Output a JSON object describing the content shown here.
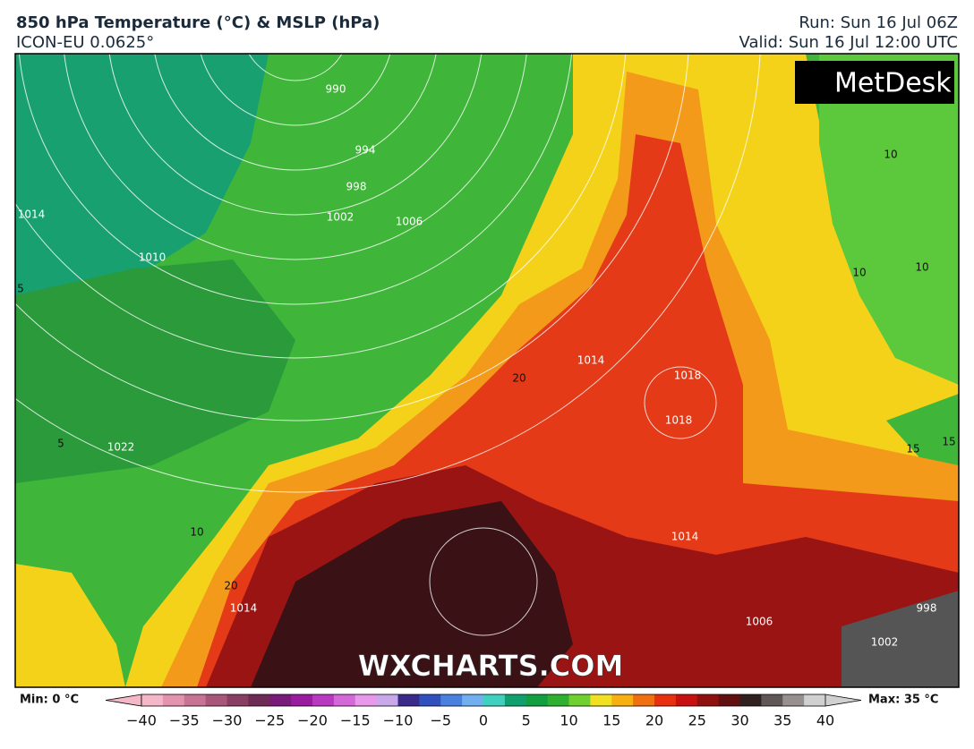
{
  "header": {
    "title": "850 hPa Temperature (°C) & MSLP (hPa)",
    "subtitle": "ICON-EU 0.0625°",
    "run": "Run: Sun 16 Jul 06Z",
    "valid": "Valid: Sun 16 Jul 12:00 UTC"
  },
  "logo": "MetDesk",
  "watermark": "WXCHARTS.COM",
  "map": {
    "isobar_labels": [
      "990",
      "994",
      "998",
      "1002",
      "1006",
      "1010",
      "1014",
      "1022",
      "1014",
      "1018",
      "1018",
      "1014",
      "1006",
      "1002",
      "998",
      "1014"
    ],
    "temperature_labels": [
      "10",
      "10",
      "10",
      "5",
      "5",
      "10",
      "20",
      "15",
      "15",
      "20"
    ]
  },
  "colorbar": {
    "min_label": "Min: 0 °C",
    "max_label": "Max: 35 °C",
    "range": [
      -40,
      40
    ],
    "ticks": [
      {
        "value": -40,
        "label": "−40"
      },
      {
        "value": -35,
        "label": "−35"
      },
      {
        "value": -30,
        "label": "−30"
      },
      {
        "value": -25,
        "label": "−25"
      },
      {
        "value": -20,
        "label": "−20"
      },
      {
        "value": -15,
        "label": "−15"
      },
      {
        "value": -10,
        "label": "−10"
      },
      {
        "value": -5,
        "label": "−5"
      },
      0,
      5,
      10,
      15,
      20,
      25,
      30,
      35,
      40
    ],
    "colors": [
      "#f4b7c8",
      "#e393ad",
      "#c87394",
      "#a8577a",
      "#883f63",
      "#6e2b55",
      "#7a1a7a",
      "#9a1aa0",
      "#b838c0",
      "#d468d8",
      "#e898e8",
      "#c8a8e8",
      "#3a2a8a",
      "#3050c0",
      "#4a80e0",
      "#70b0f0",
      "#40d0c0",
      "#10a070",
      "#10a040",
      "#30b030",
      "#70d030",
      "#f0e020",
      "#f8b010",
      "#f07010",
      "#e83010",
      "#c81010",
      "#901010",
      "#601010",
      "#302020",
      "#605858",
      "#989090",
      "#d0d0d0"
    ]
  }
}
